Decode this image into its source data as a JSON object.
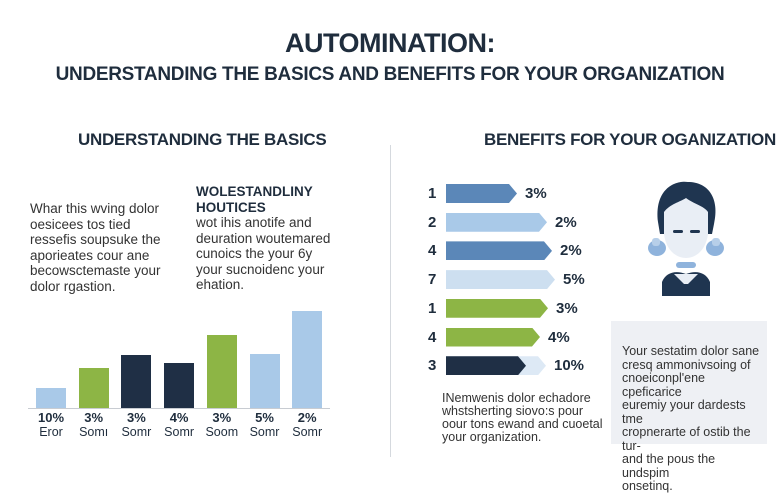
{
  "header": {
    "title": "AUTOMINATION:",
    "subtitle": "UNDERSTANDING THE BASICS AND BENEFITS FOR YOUR ORGANIZATION"
  },
  "left": {
    "heading": "UNDERSTANDING THE BASICS",
    "paragraph": [
      "Whar this wving dolor",
      "oesicees tos tied",
      "ressefis soupsuke the",
      "aporieates cour ane",
      "becowsctemaste your",
      "dolor rgastion."
    ],
    "subheading": [
      "WOLESTANDLINY",
      "HOUTICES"
    ],
    "subparagraph": [
      "wot ihis anotife and",
      "deuration woutemared",
      "cunoics the your 6y",
      "your sucnoidenc your",
      "ehation."
    ]
  },
  "right": {
    "heading": "BENEFITS FOR YOUR OGANIZATION",
    "caption": [
      "INemwenis dolor echadore",
      "whstsherting siovo:s pour",
      "oour tons ewand and cuoetal",
      "your organization."
    ],
    "box_text": [
      "Your sestatim dolor sane",
      "cresq ammonivsoing of",
      "cnoeiconpl'ene cpeficarice",
      "euremiy your dardests tme",
      "cropnerarte of ostib the tur-",
      "and the pous the undspim",
      "onsetinq."
    ],
    "icon": "robot-assistant-icon"
  },
  "colors": {
    "navy": "#1f2f45",
    "steel_blue": "#5b87b8",
    "light_blue": "#a9c9e8",
    "pale_blue": "#cddff0",
    "green": "#8db545"
  },
  "chart_data": [
    {
      "type": "bar",
      "orientation": "vertical",
      "categories": [
        "Eror",
        "Somı",
        "Somr",
        "Somr",
        "Soom",
        "Somr",
        "Somr"
      ],
      "value_labels": [
        "10%",
        "3%",
        "3%",
        "4%",
        "3%",
        "5%",
        "2%"
      ],
      "values": [
        20,
        40,
        53,
        45,
        73,
        54,
        97
      ],
      "colors": [
        "#a9c9e8",
        "#8db545",
        "#1f2f45",
        "#1f2f45",
        "#8db545",
        "#a9c9e8",
        "#a9c9e8"
      ],
      "grid": false
    },
    {
      "type": "bar",
      "orientation": "horizontal",
      "categories": [
        "1",
        "2",
        "4",
        "7",
        "1",
        "4",
        "3"
      ],
      "value_labels": [
        "3%",
        "2%",
        "2%",
        "5%",
        "3%",
        "4%",
        "10%"
      ],
      "values": [
        71,
        101,
        106,
        109,
        102,
        94,
        80
      ],
      "remainder": [
        0,
        0,
        0,
        0,
        0,
        0,
        20
      ],
      "colors": [
        "#5b87b8",
        "#a9c9e8",
        "#5b87b8",
        "#cddff0",
        "#8db545",
        "#8db545",
        "#1f2f45"
      ],
      "grid": false
    }
  ]
}
